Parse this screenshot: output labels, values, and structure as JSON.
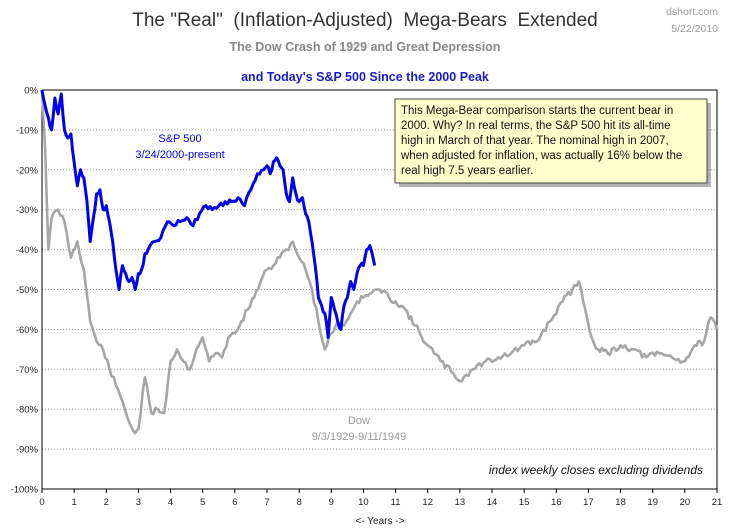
{
  "page": {
    "title": "The \"Real\"  (Inflation-Adjusted)  Mega-Bears  Extended",
    "subtitle": "The Dow Crash of 1929 and Great Depression",
    "subtitle2": "and Today's S&P 500  Since the 2000  Peak",
    "source": "dshort.com",
    "date": "5/22/2010",
    "footnote": "index weekly closes excluding dividends",
    "note_lines": [
      "This Mega-Bear comparison starts  the current bear in",
      "2000.  Why? In real terms, the S&P 500 hit its all-time",
      "high in March of that year. The nominal high in 2007,",
      "when adjusted for inflation, was actually 16% below the",
      "real high 7.5 years earlier."
    ]
  },
  "chart_data": {
    "type": "line",
    "xlabel": "<- Years ->",
    "ylabel": "",
    "xlim": [
      0,
      21
    ],
    "ylim": [
      -100,
      0
    ],
    "x_ticks": [
      0,
      1,
      2,
      3,
      4,
      5,
      6,
      7,
      8,
      9,
      10,
      11,
      12,
      13,
      14,
      15,
      16,
      17,
      18,
      19,
      20,
      21
    ],
    "y_ticks": [
      0,
      -10,
      -20,
      -30,
      -40,
      -50,
      -60,
      -70,
      -80,
      -90,
      -100
    ],
    "y_tick_labels": [
      "0%",
      "-10%",
      "-20%",
      "-30%",
      "-40%",
      "-50%",
      "-60%",
      "-70%",
      "-80%",
      "-90%",
      "-100%"
    ],
    "grid": "horizontal dotted",
    "colors": {
      "sp500": "#0000ee",
      "dow": "#a6a6a6"
    },
    "series": [
      {
        "name": "Dow",
        "label_lines": [
          "Dow",
          "9/3/1929-9/11/1949"
        ],
        "x": [
          0,
          0.1,
          0.2,
          0.3,
          0.5,
          0.7,
          0.9,
          1.1,
          1.3,
          1.5,
          1.7,
          1.9,
          2.1,
          2.3,
          2.5,
          2.7,
          2.9,
          3.0,
          3.2,
          3.4,
          3.6,
          3.8,
          4.0,
          4.2,
          4.4,
          4.6,
          4.8,
          5.0,
          5.2,
          5.4,
          5.6,
          5.8,
          6.0,
          6.2,
          6.4,
          6.6,
          6.8,
          7.0,
          7.2,
          7.4,
          7.6,
          7.8,
          8.0,
          8.2,
          8.4,
          8.6,
          8.8,
          9.0,
          9.2,
          9.4,
          9.6,
          9.8,
          10.0,
          10.2,
          10.5,
          10.8,
          11.0,
          11.3,
          11.6,
          12.0,
          12.4,
          12.8,
          13.0,
          13.4,
          13.8,
          14.2,
          14.6,
          15.0,
          15.4,
          15.8,
          16.2,
          16.5,
          16.7,
          16.9,
          17.1,
          17.3,
          17.6,
          18.0,
          18.4,
          18.8,
          19.2,
          19.6,
          20.0,
          20.3,
          20.6,
          20.8,
          21.0
        ],
        "values": [
          0,
          -15,
          -40,
          -32,
          -30,
          -33,
          -42,
          -38,
          -45,
          -58,
          -63,
          -65,
          -70,
          -74,
          -78,
          -83,
          -86,
          -85,
          -72,
          -81,
          -80,
          -81,
          -68,
          -65,
          -68,
          -70,
          -65,
          -62,
          -68,
          -66,
          -67,
          -62,
          -61,
          -58,
          -55,
          -52,
          -48,
          -45,
          -44,
          -42,
          -40,
          -38,
          -42,
          -45,
          -50,
          -58,
          -65,
          -61,
          -58,
          -59,
          -56,
          -53,
          -52,
          -51,
          -50,
          -52,
          -53,
          -55,
          -59,
          -64,
          -68,
          -71,
          -73,
          -70,
          -68,
          -67,
          -66,
          -64,
          -63,
          -58,
          -53,
          -50,
          -48,
          -55,
          -62,
          -65,
          -66,
          -64,
          -65,
          -67,
          -66,
          -67,
          -68,
          -64,
          -63,
          -57,
          -60
        ]
      },
      {
        "name": "S&P 500",
        "label_lines": [
          "S&P 500",
          "3/24/2000-present"
        ],
        "x": [
          0,
          0.1,
          0.2,
          0.3,
          0.4,
          0.5,
          0.6,
          0.7,
          0.8,
          0.9,
          1.0,
          1.1,
          1.2,
          1.3,
          1.4,
          1.5,
          1.6,
          1.7,
          1.8,
          1.9,
          2.0,
          2.1,
          2.2,
          2.3,
          2.4,
          2.5,
          2.6,
          2.7,
          2.8,
          2.9,
          3.0,
          3.1,
          3.2,
          3.3,
          3.5,
          3.7,
          3.9,
          4.1,
          4.3,
          4.5,
          4.7,
          4.9,
          5.1,
          5.3,
          5.5,
          5.7,
          5.9,
          6.1,
          6.3,
          6.5,
          6.7,
          6.9,
          7.0,
          7.1,
          7.2,
          7.3,
          7.4,
          7.5,
          7.6,
          7.7,
          7.8,
          7.9,
          8.0,
          8.1,
          8.2,
          8.3,
          8.4,
          8.5,
          8.6,
          8.7,
          8.8,
          8.9,
          9.0,
          9.1,
          9.2,
          9.3,
          9.4,
          9.5,
          9.6,
          9.7,
          9.8,
          9.9,
          10.0,
          10.1,
          10.2,
          10.35
        ],
        "values": [
          0,
          -4,
          -7,
          -10,
          -2,
          -6,
          -1,
          -10,
          -12,
          -11,
          -18,
          -24,
          -20,
          -22,
          -28,
          -38,
          -32,
          -26,
          -25,
          -30,
          -29,
          -33,
          -38,
          -45,
          -50,
          -44,
          -46,
          -48,
          -47,
          -50,
          -46,
          -45,
          -41,
          -40,
          -38,
          -37,
          -33,
          -34,
          -33,
          -32,
          -34,
          -31,
          -29,
          -30,
          -29,
          -28,
          -28,
          -27,
          -29,
          -25,
          -21,
          -20,
          -19,
          -21,
          -18,
          -17,
          -19,
          -20,
          -26,
          -28,
          -22,
          -26,
          -28,
          -27,
          -31,
          -33,
          -38,
          -44,
          -52,
          -54,
          -56,
          -62,
          -52,
          -55,
          -58,
          -60,
          -54,
          -52,
          -48,
          -50,
          -46,
          -44,
          -44,
          -40,
          -39,
          -44
        ]
      }
    ]
  }
}
